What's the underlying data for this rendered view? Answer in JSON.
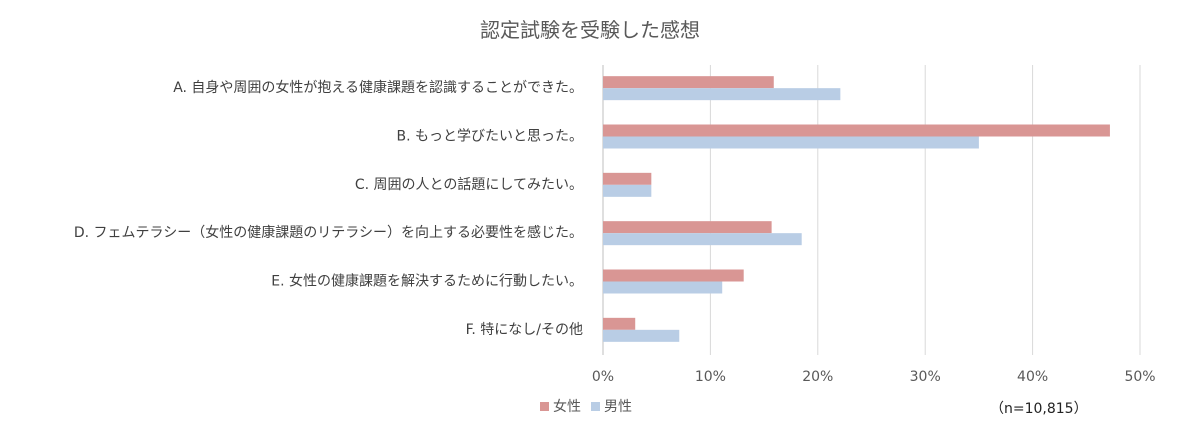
{
  "chart_data": {
    "type": "bar",
    "orientation": "horizontal",
    "title": "認定試験を受験した感想",
    "categories": [
      "A. 自身や周囲の女性が抱える健康課題を認識することができた。",
      "B. もっと学びたいと思った。",
      "C. 周囲の人との話題にしてみたい。",
      "D. フェムテラシー（女性の健康課題のリテラシー）を向上する必要性を感じた。",
      "E. 女性の健康課題を解決するために行動したい。",
      "F. 特になし/その他"
    ],
    "series": [
      {
        "name": "女性",
        "color": "#d99694",
        "values": [
          15.9,
          47.2,
          4.5,
          15.7,
          13.1,
          3.0
        ]
      },
      {
        "name": "男性",
        "color": "#b9cde5",
        "values": [
          22.1,
          35.0,
          4.5,
          18.5,
          11.1,
          7.1
        ]
      }
    ],
    "xlim": [
      0,
      50
    ],
    "xticks": [
      "0%",
      "10%",
      "20%",
      "30%",
      "40%",
      "50%"
    ],
    "grid": true,
    "legend_position": "bottom",
    "note": "（n=10,815）"
  }
}
